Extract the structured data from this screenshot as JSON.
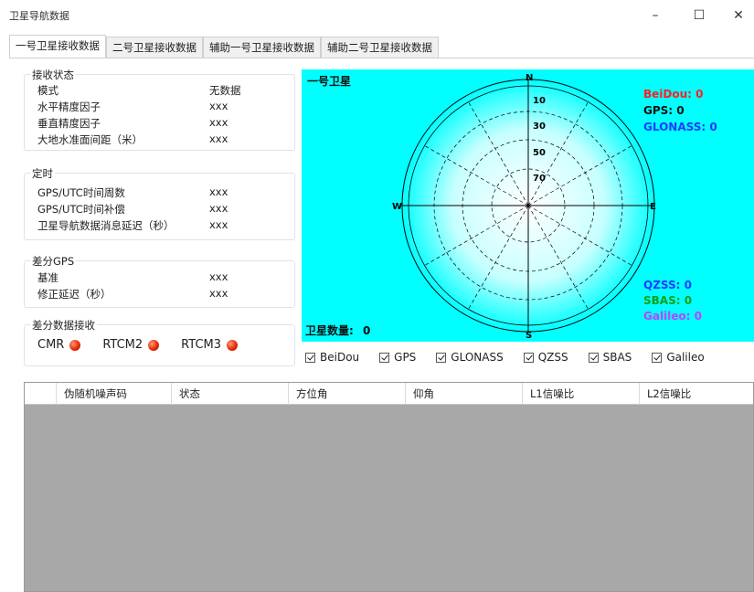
{
  "window": {
    "title": "卫星导航数据",
    "minimize": "–",
    "maximize": "☐",
    "close": "✕"
  },
  "tabs": [
    {
      "label": "一号卫星接收数据",
      "active": true
    },
    {
      "label": "二号卫星接收数据",
      "active": false
    },
    {
      "label": "辅助一号卫星接收数据",
      "active": false
    },
    {
      "label": "辅助二号卫星接收数据",
      "active": false
    }
  ],
  "receive_status": {
    "title": "接收状态",
    "rows": [
      {
        "label": "模式",
        "value": "无数据"
      },
      {
        "label": "水平精度因子",
        "value": "xxx"
      },
      {
        "label": "垂直精度因子",
        "value": "xxx"
      },
      {
        "label": "大地水准面间距（米）",
        "value": "xxx"
      }
    ]
  },
  "timing": {
    "title": "定时",
    "rows": [
      {
        "label": "GPS/UTC时间周数",
        "value": "xxx"
      },
      {
        "label": "GPS/UTC时间补偿",
        "value": "xxx"
      },
      {
        "label": "卫星导航数据消息延迟（秒）",
        "value": "xxx"
      }
    ]
  },
  "dgps": {
    "title": "差分GPS",
    "rows": [
      {
        "label": "基准",
        "value": "xxx"
      },
      {
        "label": "修正延迟（秒）",
        "value": "xxx"
      }
    ]
  },
  "diff_receive": {
    "title": "差分数据接收",
    "items": [
      {
        "label": "CMR"
      },
      {
        "label": "RTCM2"
      },
      {
        "label": "RTCM3"
      }
    ]
  },
  "skyplot": {
    "title": "一号卫星",
    "directions": {
      "n": "N",
      "s": "S",
      "e": "E",
      "w": "W"
    },
    "elevations": [
      "10",
      "30",
      "50",
      "70"
    ],
    "sat_count_label": "卫星数量:",
    "sat_count": "0",
    "legend": [
      {
        "name": "BeiDou:",
        "value": "0",
        "color": "#ff2020"
      },
      {
        "name": "GPS:",
        "value": "0",
        "color": "#111111"
      },
      {
        "name": "GLONASS:",
        "value": "0",
        "color": "#1a3cff"
      },
      {
        "name": "QZSS:",
        "value": "0",
        "color": "#1a3cff"
      },
      {
        "name": "SBAS:",
        "value": "0",
        "color": "#10a010"
      },
      {
        "name": "Galileo:",
        "value": "0",
        "color": "#c040ff"
      }
    ]
  },
  "filters": [
    {
      "label": "BeiDou",
      "checked": true
    },
    {
      "label": "GPS",
      "checked": true
    },
    {
      "label": "GLONASS",
      "checked": true
    },
    {
      "label": "QZSS",
      "checked": true
    },
    {
      "label": "SBAS",
      "checked": true
    },
    {
      "label": "Galileo",
      "checked": true
    }
  ],
  "table": {
    "columns": [
      "伪随机噪声码",
      "状态",
      "方位角",
      "仰角",
      "L1信噪比",
      "L2信噪比"
    ]
  }
}
